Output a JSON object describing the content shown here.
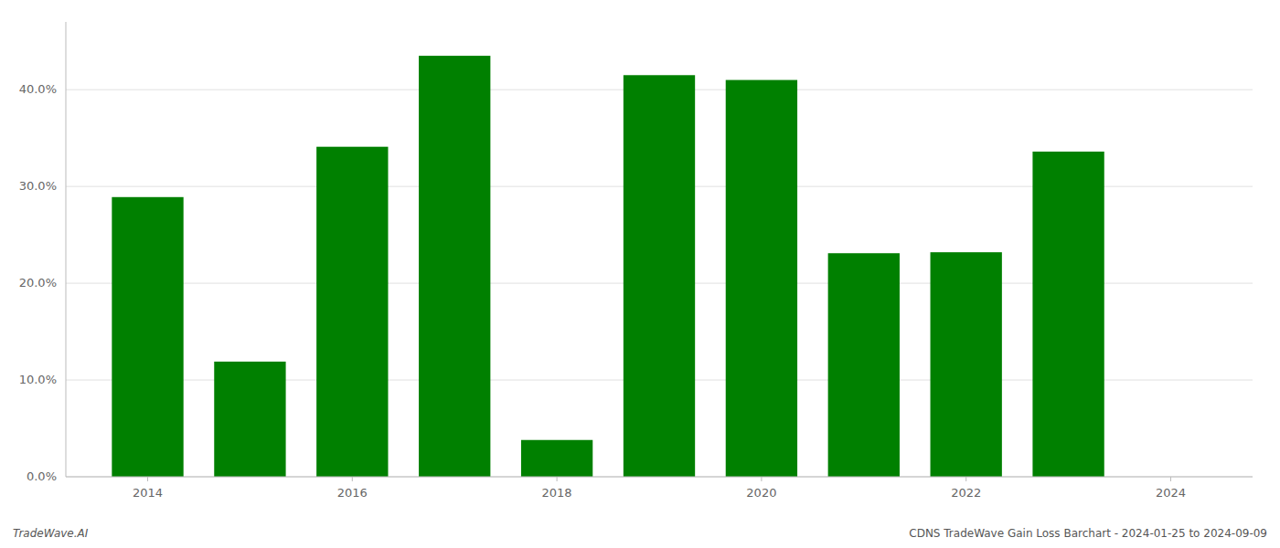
{
  "chart_data": {
    "type": "bar",
    "x": [
      2014,
      2015,
      2016,
      2017,
      2018,
      2019,
      2020,
      2021,
      2022,
      2023
    ],
    "values": [
      0.289,
      0.119,
      0.341,
      0.435,
      0.038,
      0.415,
      0.41,
      0.231,
      0.232,
      0.336
    ],
    "color": "#008000",
    "xlim": [
      2013.2,
      2024.8
    ],
    "xticks": [
      2014,
      2016,
      2018,
      2020,
      2022,
      2024
    ],
    "ylim": [
      0,
      0.47
    ],
    "yticks": [
      {
        "value": 0.0,
        "label": "0.0%"
      },
      {
        "value": 0.1,
        "label": "10.0%"
      },
      {
        "value": 0.2,
        "label": "20.0%"
      },
      {
        "value": 0.3,
        "label": "30.0%"
      },
      {
        "value": 0.4,
        "label": "40.0%"
      }
    ],
    "grid": true,
    "annotations": [
      "TradeWave.AI",
      "CDNS TradeWave Gain Loss Barchart - 2024-01-25 to 2024-09-09"
    ]
  }
}
